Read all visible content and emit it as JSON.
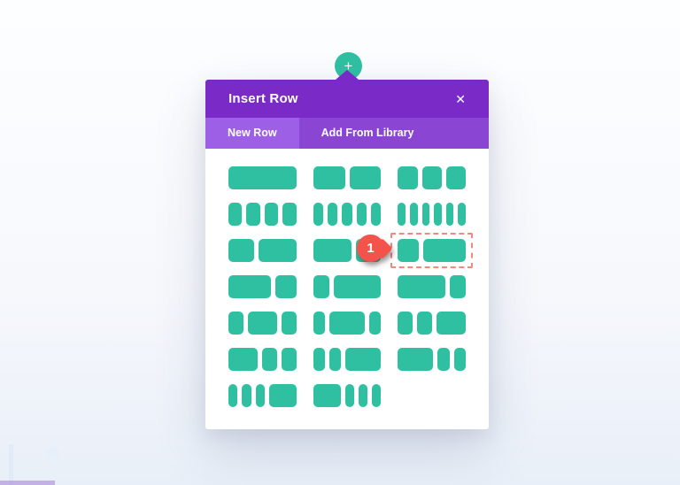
{
  "page": {
    "background_top": "#fdfeff",
    "background_bottom": "#e9eff8"
  },
  "insert_button": {
    "icon": "plus-icon",
    "glyph": "+"
  },
  "modal": {
    "title": "Insert Row",
    "close_glyph": "✕",
    "tabs": [
      {
        "id": "new-row",
        "label": "New Row",
        "active": true
      },
      {
        "id": "add-from-library",
        "label": "Add From Library",
        "active": false
      }
    ],
    "colors": {
      "header_bg": "#7a2bc7",
      "tabbar_bg": "#8a46d2",
      "active_tab_bg": "#9c5fe6",
      "block": "#2fc0a2",
      "highlight": "#ef8a7e",
      "pointer": "#f4534b"
    }
  },
  "layouts": [
    {
      "name": "fullwidth",
      "columns": [
        "1/1"
      ],
      "highlighted": false
    },
    {
      "name": "half-half",
      "columns": [
        "1/2",
        "1/2"
      ],
      "highlighted": false
    },
    {
      "name": "thirds",
      "columns": [
        "1/3",
        "1/3",
        "1/3"
      ],
      "highlighted": false
    },
    {
      "name": "fourths",
      "columns": [
        "1/4",
        "1/4",
        "1/4",
        "1/4"
      ],
      "highlighted": false
    },
    {
      "name": "fifths",
      "columns": [
        "1/5",
        "1/5",
        "1/5",
        "1/5",
        "1/5"
      ],
      "highlighted": false
    },
    {
      "name": "sixths",
      "columns": [
        "1/6",
        "1/6",
        "1/6",
        "1/6",
        "1/6",
        "1/6"
      ],
      "highlighted": false
    },
    {
      "name": "two-fifths-three-fifths",
      "columns": [
        "2/5",
        "3/5"
      ],
      "highlighted": false
    },
    {
      "name": "three-fifths-two-fifths",
      "columns": [
        "3/5",
        "2/5"
      ],
      "highlighted": false
    },
    {
      "name": "one-third-two-thirds",
      "columns": [
        "1/3",
        "2/3"
      ],
      "highlighted": true
    },
    {
      "name": "two-thirds-one-third",
      "columns": [
        "2/3",
        "1/3"
      ],
      "highlighted": false
    },
    {
      "name": "one-fourth-three-fourths",
      "columns": [
        "1/4",
        "3/4"
      ],
      "highlighted": false
    },
    {
      "name": "three-fourths-one-fourth",
      "columns": [
        "3/4",
        "1/4"
      ],
      "highlighted": false
    },
    {
      "name": "quarter-half-quarter",
      "columns": [
        "1/4",
        "1/2",
        "1/4"
      ],
      "highlighted": false
    },
    {
      "name": "fifth-three-fifths-fifth",
      "columns": [
        "1/5",
        "3/5",
        "1/5"
      ],
      "highlighted": false
    },
    {
      "name": "quarter-quarter-half",
      "columns": [
        "1/4",
        "1/4",
        "1/2"
      ],
      "highlighted": false
    },
    {
      "name": "half-quarter-quarter",
      "columns": [
        "1/2",
        "1/4",
        "1/4"
      ],
      "highlighted": false
    },
    {
      "name": "fifth-fifth-three-fifths",
      "columns": [
        "1/5",
        "1/5",
        "3/5"
      ],
      "highlighted": false
    },
    {
      "name": "three-fifths-fifth-fifth",
      "columns": [
        "3/5",
        "1/5",
        "1/5"
      ],
      "highlighted": false
    },
    {
      "name": "sixths-x3-half",
      "columns": [
        "1/6",
        "1/6",
        "1/6",
        "1/2"
      ],
      "highlighted": false
    },
    {
      "name": "half-sixths-x3",
      "columns": [
        "1/2",
        "1/6",
        "1/6",
        "1/6"
      ],
      "highlighted": false
    }
  ],
  "annotation": {
    "step_number": "1"
  }
}
